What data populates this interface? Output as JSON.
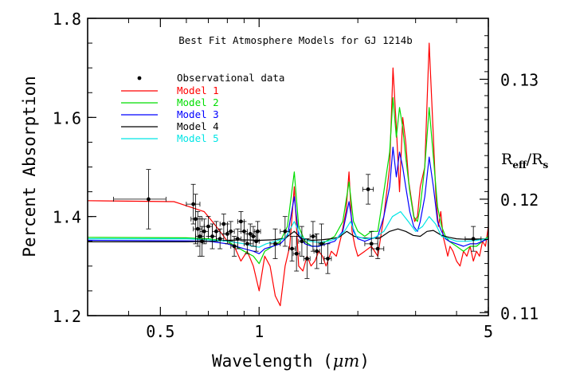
{
  "chart_data": {
    "type": "line",
    "title": "Best Fit Atmosphere Models for GJ 1214b",
    "xlabel_prefix": "Wavelength (",
    "xlabel_unit": "μm",
    "xlabel_suffix": ")",
    "ylabel": "Percent Absorption",
    "y2label_main": "R",
    "y2label_sub1": "eff",
    "y2label_slash": "/R",
    "y2label_sub2": "s",
    "x_scale": "log",
    "xlim": [
      0.3,
      5.0
    ],
    "ylim": [
      1.2,
      1.8
    ],
    "x_ticks": [
      {
        "value": 0.5,
        "label": "0.5"
      },
      {
        "value": 1,
        "label": "1"
      },
      {
        "value": 5,
        "label": "5"
      }
    ],
    "y_ticks": [
      {
        "value": 1.2,
        "label": "1.2"
      },
      {
        "value": 1.4,
        "label": "1.4"
      },
      {
        "value": 1.6,
        "label": "1.6"
      },
      {
        "value": 1.8,
        "label": "1.8"
      }
    ],
    "y2_ticks": [
      {
        "value": 1.206,
        "label": "0.11"
      },
      {
        "value": 1.435,
        "label": "0.12"
      },
      {
        "value": 1.677,
        "label": "0.13"
      }
    ],
    "grid": false,
    "legend_position": "top-left",
    "legend_marker_label": "Observational data",
    "series": [
      {
        "name": "Model 1",
        "color": "#ff0000",
        "x": [
          0.3,
          0.55,
          0.68,
          0.72,
          0.76,
          0.8,
          0.84,
          0.88,
          0.92,
          0.96,
          1.0,
          1.04,
          1.08,
          1.12,
          1.16,
          1.2,
          1.24,
          1.28,
          1.32,
          1.36,
          1.4,
          1.44,
          1.48,
          1.52,
          1.56,
          1.6,
          1.66,
          1.72,
          1.78,
          1.84,
          1.88,
          1.92,
          1.96,
          2.0,
          2.1,
          2.2,
          2.3,
          2.4,
          2.5,
          2.56,
          2.62,
          2.68,
          2.74,
          2.8,
          2.86,
          2.92,
          2.98,
          3.04,
          3.1,
          3.2,
          3.3,
          3.4,
          3.46,
          3.52,
          3.58,
          3.64,
          3.7,
          3.76,
          3.82,
          3.9,
          4.0,
          4.1,
          4.2,
          4.3,
          4.4,
          4.5,
          4.6,
          4.7,
          4.8,
          4.9,
          5.0
        ],
        "y": [
          1.432,
          1.43,
          1.41,
          1.39,
          1.37,
          1.35,
          1.34,
          1.31,
          1.33,
          1.3,
          1.25,
          1.32,
          1.3,
          1.24,
          1.22,
          1.3,
          1.34,
          1.46,
          1.3,
          1.29,
          1.32,
          1.3,
          1.31,
          1.33,
          1.32,
          1.3,
          1.33,
          1.32,
          1.36,
          1.41,
          1.49,
          1.37,
          1.34,
          1.32,
          1.33,
          1.34,
          1.32,
          1.4,
          1.5,
          1.7,
          1.58,
          1.45,
          1.6,
          1.55,
          1.47,
          1.43,
          1.39,
          1.4,
          1.46,
          1.5,
          1.75,
          1.56,
          1.44,
          1.38,
          1.41,
          1.36,
          1.34,
          1.32,
          1.34,
          1.33,
          1.31,
          1.3,
          1.33,
          1.32,
          1.34,
          1.31,
          1.33,
          1.32,
          1.35,
          1.34,
          1.38
        ]
      },
      {
        "name": "Model 2",
        "color": "#00dd00",
        "x": [
          0.3,
          0.6,
          0.7,
          0.8,
          0.9,
          0.96,
          1.0,
          1.04,
          1.1,
          1.16,
          1.22,
          1.28,
          1.32,
          1.38,
          1.45,
          1.52,
          1.6,
          1.7,
          1.8,
          1.88,
          1.94,
          2.0,
          2.1,
          2.2,
          2.3,
          2.4,
          2.5,
          2.56,
          2.62,
          2.68,
          2.74,
          2.8,
          2.88,
          2.96,
          3.04,
          3.1,
          3.2,
          3.3,
          3.4,
          3.5,
          3.6,
          3.7,
          3.8,
          4.0,
          4.2,
          4.4,
          4.6,
          4.8,
          5.0
        ],
        "y": [
          1.358,
          1.357,
          1.355,
          1.35,
          1.33,
          1.32,
          1.305,
          1.33,
          1.34,
          1.35,
          1.38,
          1.49,
          1.38,
          1.35,
          1.34,
          1.34,
          1.35,
          1.36,
          1.39,
          1.47,
          1.39,
          1.37,
          1.36,
          1.37,
          1.37,
          1.45,
          1.53,
          1.64,
          1.56,
          1.62,
          1.58,
          1.52,
          1.45,
          1.4,
          1.39,
          1.42,
          1.5,
          1.62,
          1.52,
          1.42,
          1.38,
          1.36,
          1.35,
          1.34,
          1.33,
          1.34,
          1.34,
          1.35,
          1.36
        ]
      },
      {
        "name": "Model 3",
        "color": "#0000ff",
        "x": [
          0.3,
          0.6,
          0.7,
          0.8,
          0.9,
          0.96,
          1.0,
          1.04,
          1.1,
          1.16,
          1.22,
          1.28,
          1.32,
          1.38,
          1.45,
          1.52,
          1.6,
          1.7,
          1.8,
          1.88,
          1.94,
          2.0,
          2.1,
          2.2,
          2.3,
          2.4,
          2.5,
          2.56,
          2.62,
          2.68,
          2.74,
          2.8,
          2.88,
          2.96,
          3.04,
          3.1,
          3.2,
          3.3,
          3.4,
          3.5,
          3.6,
          3.7,
          3.8,
          4.0,
          4.2,
          4.4,
          4.6,
          4.8,
          5.0
        ],
        "y": [
          1.352,
          1.351,
          1.35,
          1.345,
          1.335,
          1.33,
          1.325,
          1.335,
          1.34,
          1.345,
          1.36,
          1.44,
          1.36,
          1.345,
          1.34,
          1.34,
          1.345,
          1.35,
          1.37,
          1.43,
          1.37,
          1.355,
          1.35,
          1.355,
          1.36,
          1.4,
          1.46,
          1.54,
          1.48,
          1.53,
          1.5,
          1.46,
          1.41,
          1.38,
          1.37,
          1.39,
          1.44,
          1.52,
          1.46,
          1.39,
          1.37,
          1.355,
          1.35,
          1.345,
          1.34,
          1.345,
          1.345,
          1.35,
          1.355
        ]
      },
      {
        "name": "Model 4",
        "color": "#000000",
        "x": [
          0.3,
          0.6,
          0.7,
          0.8,
          0.9,
          1.0,
          1.1,
          1.2,
          1.28,
          1.35,
          1.45,
          1.55,
          1.65,
          1.75,
          1.85,
          1.95,
          2.05,
          2.2,
          2.35,
          2.5,
          2.65,
          2.8,
          2.95,
          3.1,
          3.25,
          3.4,
          3.6,
          3.8,
          4.0,
          4.3,
          4.6,
          5.0
        ],
        "y": [
          1.349,
          1.349,
          1.35,
          1.352,
          1.353,
          1.352,
          1.353,
          1.356,
          1.37,
          1.355,
          1.352,
          1.353,
          1.355,
          1.358,
          1.37,
          1.36,
          1.357,
          1.356,
          1.358,
          1.37,
          1.375,
          1.37,
          1.362,
          1.36,
          1.37,
          1.372,
          1.362,
          1.358,
          1.355,
          1.354,
          1.354,
          1.355
        ]
      },
      {
        "name": "Model 5",
        "color": "#00e5e5",
        "x": [
          0.3,
          0.6,
          0.7,
          0.8,
          0.9,
          0.96,
          1.0,
          1.05,
          1.12,
          1.2,
          1.28,
          1.34,
          1.42,
          1.52,
          1.62,
          1.72,
          1.82,
          1.9,
          1.98,
          2.1,
          2.25,
          2.4,
          2.55,
          2.7,
          2.85,
          3.0,
          3.15,
          3.3,
          3.45,
          3.6,
          3.8,
          4.0,
          4.3,
          4.6,
          5.0
        ],
        "y": [
          1.355,
          1.355,
          1.353,
          1.35,
          1.345,
          1.34,
          1.338,
          1.345,
          1.35,
          1.356,
          1.39,
          1.36,
          1.35,
          1.348,
          1.35,
          1.355,
          1.37,
          1.39,
          1.36,
          1.355,
          1.357,
          1.37,
          1.4,
          1.41,
          1.39,
          1.37,
          1.38,
          1.4,
          1.385,
          1.36,
          1.355,
          1.35,
          1.35,
          1.352,
          1.355
        ]
      }
    ],
    "observations": [
      {
        "x": 0.46,
        "y": 1.435,
        "yerr": 0.06,
        "xerr": [
          0.1,
          0.06
        ]
      },
      {
        "x": 0.63,
        "y": 1.425,
        "yerr": 0.04,
        "xerr": [
          0.03,
          0.03
        ]
      },
      {
        "x": 0.64,
        "y": 1.395,
        "yerr": 0.05,
        "xerr": [
          0.02,
          0.03
        ]
      },
      {
        "x": 0.65,
        "y": 1.375,
        "yerr": 0.035,
        "xerr": [
          0.02,
          0.02
        ]
      },
      {
        "x": 0.66,
        "y": 1.36,
        "yerr": 0.04,
        "xerr": [
          0.02,
          0.02
        ]
      },
      {
        "x": 0.67,
        "y": 1.35,
        "yerr": 0.03,
        "xerr": [
          0.02,
          0.02
        ]
      },
      {
        "x": 0.68,
        "y": 1.37,
        "yerr": 0.025,
        "xerr": [
          0.02,
          0.02
        ]
      },
      {
        "x": 0.7,
        "y": 1.38,
        "yerr": 0.02,
        "xerr": [
          0.02,
          0.02
        ]
      },
      {
        "x": 0.72,
        "y": 1.36,
        "yerr": 0.025,
        "xerr": [
          0.02,
          0.02
        ]
      },
      {
        "x": 0.74,
        "y": 1.37,
        "yerr": 0.02,
        "xerr": [
          0.02,
          0.02
        ]
      },
      {
        "x": 0.76,
        "y": 1.355,
        "yerr": 0.02,
        "xerr": [
          0.02,
          0.02
        ]
      },
      {
        "x": 0.78,
        "y": 1.385,
        "yerr": 0.02,
        "xerr": [
          0.02,
          0.02
        ]
      },
      {
        "x": 0.8,
        "y": 1.365,
        "yerr": 0.02,
        "xerr": [
          0.02,
          0.02
        ]
      },
      {
        "x": 0.82,
        "y": 1.37,
        "yerr": 0.02,
        "xerr": [
          0.02,
          0.02
        ]
      },
      {
        "x": 0.84,
        "y": 1.34,
        "yerr": 0.02,
        "xerr": [
          0.02,
          0.02
        ]
      },
      {
        "x": 0.86,
        "y": 1.355,
        "yerr": 0.02,
        "xerr": [
          0.02,
          0.02
        ]
      },
      {
        "x": 0.88,
        "y": 1.39,
        "yerr": 0.02,
        "xerr": [
          0.02,
          0.02
        ]
      },
      {
        "x": 0.9,
        "y": 1.37,
        "yerr": 0.02,
        "xerr": [
          0.02,
          0.02
        ]
      },
      {
        "x": 0.92,
        "y": 1.345,
        "yerr": 0.02,
        "xerr": [
          0.02,
          0.02
        ]
      },
      {
        "x": 0.94,
        "y": 1.365,
        "yerr": 0.02,
        "xerr": [
          0.02,
          0.02
        ]
      },
      {
        "x": 0.96,
        "y": 1.36,
        "yerr": 0.02,
        "xerr": [
          0.02,
          0.02
        ]
      },
      {
        "x": 0.98,
        "y": 1.35,
        "yerr": 0.02,
        "xerr": [
          0.02,
          0.02
        ]
      },
      {
        "x": 0.99,
        "y": 1.37,
        "yerr": 0.02,
        "xerr": [
          0.02,
          0.02
        ]
      },
      {
        "x": 1.12,
        "y": 1.345,
        "yerr": 0.03,
        "xerr": [
          0.04,
          0.04
        ]
      },
      {
        "x": 1.2,
        "y": 1.37,
        "yerr": 0.03,
        "xerr": [
          0.04,
          0.04
        ]
      },
      {
        "x": 1.26,
        "y": 1.335,
        "yerr": 0.025,
        "xerr": [
          0.03,
          0.03
        ]
      },
      {
        "x": 1.3,
        "y": 1.325,
        "yerr": 0.035,
        "xerr": [
          0.03,
          0.03
        ]
      },
      {
        "x": 1.35,
        "y": 1.35,
        "yerr": 0.03,
        "xerr": [
          0.03,
          0.03
        ]
      },
      {
        "x": 1.4,
        "y": 1.315,
        "yerr": 0.04,
        "xerr": [
          0.03,
          0.03
        ]
      },
      {
        "x": 1.46,
        "y": 1.36,
        "yerr": 0.03,
        "xerr": [
          0.03,
          0.03
        ]
      },
      {
        "x": 1.5,
        "y": 1.33,
        "yerr": 0.035,
        "xerr": [
          0.03,
          0.03
        ]
      },
      {
        "x": 1.55,
        "y": 1.345,
        "yerr": 0.04,
        "xerr": [
          0.03,
          0.03
        ]
      },
      {
        "x": 1.62,
        "y": 1.315,
        "yerr": 0.03,
        "xerr": [
          0.04,
          0.04
        ]
      },
      {
        "x": 2.15,
        "y": 1.455,
        "yerr": 0.03,
        "xerr": [
          0.08,
          0.08
        ]
      },
      {
        "x": 2.2,
        "y": 1.345,
        "yerr": 0.025,
        "xerr": [
          0.1,
          0.1
        ]
      },
      {
        "x": 2.3,
        "y": 1.335,
        "yerr": 0.02,
        "xerr": [
          0.1,
          0.1
        ]
      },
      {
        "x": 4.5,
        "y": 1.355,
        "yerr": 0.025,
        "xerr": [
          0.25,
          0.25
        ]
      }
    ]
  }
}
